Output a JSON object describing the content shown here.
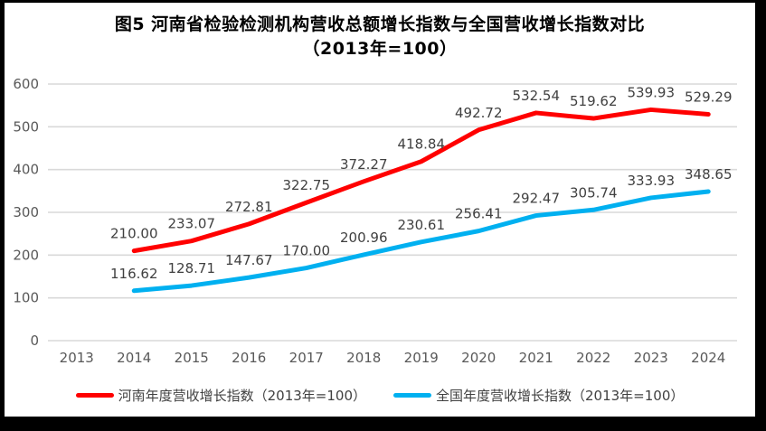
{
  "title": {
    "line1": "图5  河南省检验检测机构营收总额增长指数与全国营收增长指数对比",
    "line2": "（2013年=100）"
  },
  "chart_data": {
    "type": "line",
    "title": "图5 河南省检验检测机构营收总额增长指数与全国营收增长指数对比（2013年=100）",
    "categories": [
      "2013",
      "2014",
      "2015",
      "2016",
      "2017",
      "2018",
      "2019",
      "2020",
      "2021",
      "2022",
      "2023",
      "2024"
    ],
    "series": [
      {
        "key": "henan",
        "name": "河南年度营收增长指数（2013年=100）",
        "color": "#FF0000",
        "x_start_index": 1,
        "values": [
          210.0,
          233.07,
          272.81,
          322.75,
          372.27,
          418.84,
          492.72,
          532.54,
          519.62,
          539.93,
          529.29
        ]
      },
      {
        "key": "national",
        "name": "全国年度营收增长指数（2013年=100）",
        "color": "#00B0F0",
        "x_start_index": 1,
        "values": [
          116.62,
          128.71,
          147.67,
          170.0,
          200.96,
          230.61,
          256.41,
          292.47,
          305.74,
          333.93,
          348.65
        ]
      }
    ],
    "xlabel": "",
    "ylabel": "",
    "ylim": [
      0,
      600
    ],
    "yticks": [
      0,
      100,
      200,
      300,
      400,
      500,
      600
    ],
    "grid": "horizontal",
    "legend_position": "bottom",
    "data_labels": true,
    "data_label_decimals": 2
  },
  "legend": {
    "items": [
      {
        "key": "henan",
        "label": "河南年度营收增长指数（2013年=100）",
        "color": "#FF0000"
      },
      {
        "key": "national",
        "label": "全国年度营收增长指数（2013年=100）",
        "color": "#00B0F0"
      }
    ]
  },
  "colors": {
    "gridline": "#D9D9D9",
    "axis_tick_text": "#595959",
    "data_label_text": "#404040",
    "frame_border": "#000000",
    "background": "#FFFFFF"
  }
}
